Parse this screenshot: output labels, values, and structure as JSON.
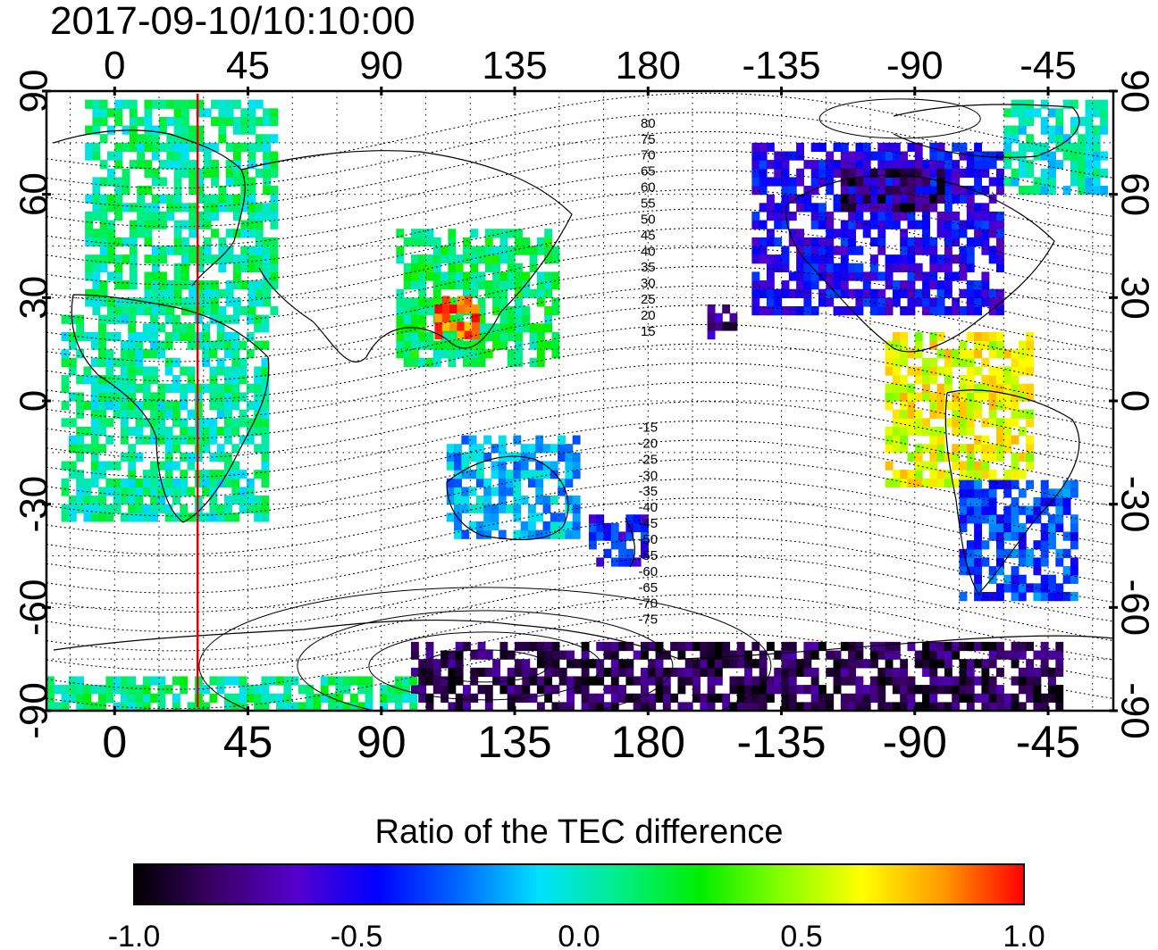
{
  "title": "2017-09-10/10:10:00",
  "map": {
    "projection": "equirectangular",
    "lon_range": [
      -23,
      337
    ],
    "lat_range": [
      -90,
      90
    ],
    "top_lon_labels": [
      "0",
      "45",
      "90",
      "135",
      "180",
      "-135",
      "-90",
      "-45"
    ],
    "top_lon_values": [
      0,
      45,
      90,
      135,
      180,
      225,
      270,
      315
    ],
    "bottom_lon_labels": [
      "0",
      "45",
      "90",
      "135",
      "180",
      "-135",
      "-90",
      "-45"
    ],
    "bottom_lon_values": [
      0,
      45,
      90,
      135,
      180,
      225,
      270,
      315
    ],
    "left_lat_labels": [
      "90",
      "60",
      "30",
      "0",
      "-30",
      "-60",
      "-90"
    ],
    "right_lat_labels": [
      "90",
      "60",
      "30",
      "0",
      "-30",
      "-60",
      "-90"
    ],
    "lat_values": [
      90,
      60,
      30,
      0,
      -30,
      -60,
      -90
    ],
    "grid": "dotted",
    "meridian_marker": {
      "lon": 28,
      "color": "#e00000"
    },
    "magnetic_latitude_labels": [
      "80",
      "75",
      "70",
      "65",
      "60",
      "55",
      "50",
      "45",
      "40",
      "35",
      "30",
      "25",
      "20",
      "15",
      "-15",
      "-20",
      "-25",
      "-30",
      "-35",
      "-40",
      "-45",
      "-50",
      "-55",
      "-60",
      "-65",
      "-70",
      "-75"
    ],
    "magnetic_label_lon": 180
  },
  "colorbar": {
    "title": "Ratio of the TEC difference",
    "range": [
      -1.0,
      1.0
    ],
    "tick_labels": [
      "-1.0",
      "-0.5",
      "0.0",
      "0.5",
      "1.0"
    ],
    "tick_values": [
      -1.0,
      -0.5,
      0.0,
      0.5,
      1.0
    ],
    "colors": [
      "#000000",
      "#3a0066",
      "#5500cc",
      "#0000ff",
      "#0066ff",
      "#00e0ff",
      "#00ee88",
      "#00ee00",
      "#88ff00",
      "#ffff00",
      "#ff9900",
      "#ff0000"
    ]
  },
  "regions": [
    {
      "region": "europe-africa-north",
      "lon": [
        -10,
        55
      ],
      "lat": [
        25,
        86
      ],
      "value": 0.08
    },
    {
      "region": "africa",
      "lon": [
        -18,
        50
      ],
      "lat": [
        -35,
        25
      ],
      "value": 0.05
    },
    {
      "region": "east-asia",
      "lon": [
        95,
        150
      ],
      "lat": [
        10,
        50
      ],
      "value": 0.15
    },
    {
      "region": "east-asia-hotspot",
      "lon": [
        108,
        122
      ],
      "lat": [
        18,
        30
      ],
      "value": 0.9
    },
    {
      "region": "australia",
      "lon": [
        112,
        155
      ],
      "lat": [
        -40,
        -10
      ],
      "value": -0.15
    },
    {
      "region": "new-zealand",
      "lon": [
        160,
        180
      ],
      "lat": [
        -48,
        -35
      ],
      "value": -0.45
    },
    {
      "region": "north-america",
      "lon": [
        215,
        300
      ],
      "lat": [
        25,
        75
      ],
      "value": -0.5
    },
    {
      "region": "canada-north",
      "lon": [
        245,
        280
      ],
      "lat": [
        55,
        67
      ],
      "value": -0.85
    },
    {
      "region": "greenland-arctic",
      "lon": [
        300,
        335
      ],
      "lat": [
        60,
        86
      ],
      "value": 0.0
    },
    {
      "region": "caribbean",
      "lon": [
        260,
        310
      ],
      "lat": [
        -25,
        20
      ],
      "value": 0.6
    },
    {
      "region": "south-america",
      "lon": [
        285,
        325
      ],
      "lat": [
        -58,
        -25
      ],
      "value": -0.35
    },
    {
      "region": "antarctic-belt",
      "lon": [
        100,
        320
      ],
      "lat": [
        -90,
        -70
      ],
      "value": -0.85
    },
    {
      "region": "antarctic-west",
      "lon": [
        -23,
        100
      ],
      "lat": [
        -90,
        -82
      ],
      "value": 0.1
    },
    {
      "region": "pacific-spot",
      "lon": [
        200,
        210
      ],
      "lat": [
        18,
        28
      ],
      "value": -0.75
    }
  ]
}
